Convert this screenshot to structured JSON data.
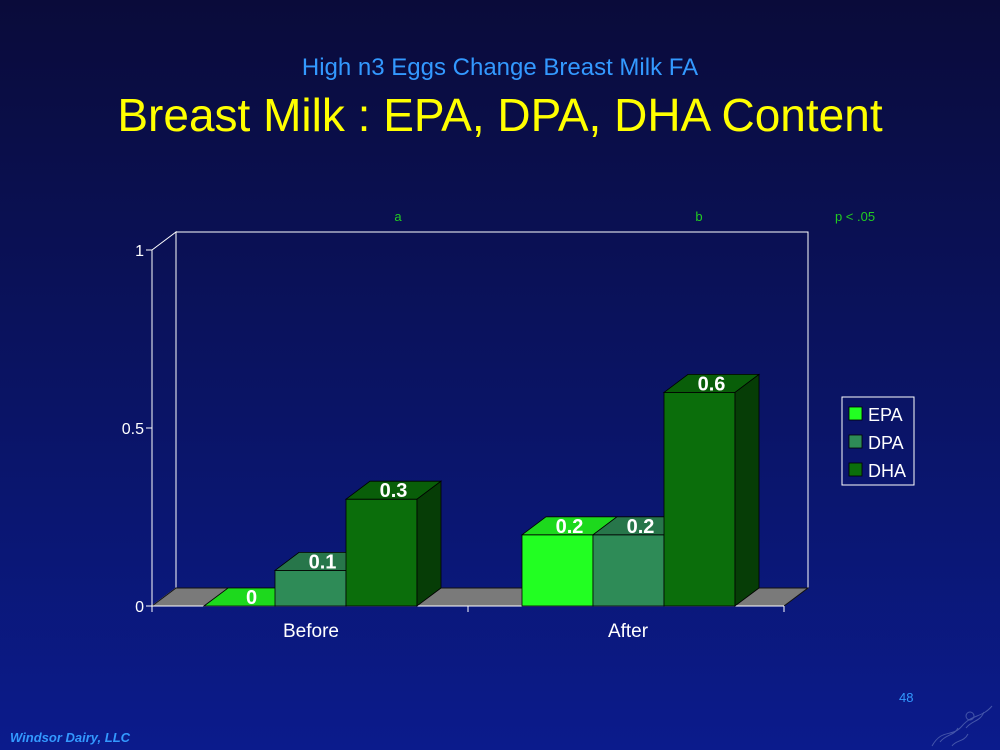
{
  "slide": {
    "subtitle": "High n3 Eggs Change Breast Milk FA",
    "title": "Breast Milk : EPA, DPA, DHA Content",
    "footer": "Windsor Dairy, LLC",
    "page_number": "48"
  },
  "chart_data": {
    "type": "bar",
    "categories": [
      "Before",
      "After"
    ],
    "series": [
      {
        "name": "EPA",
        "values": [
          0,
          0.2
        ],
        "color": "#22ff22"
      },
      {
        "name": "DPA",
        "values": [
          0.1,
          0.2
        ],
        "color": "#2e8b57"
      },
      {
        "name": "DHA",
        "values": [
          0.3,
          0.6
        ],
        "color": "#0b6e0b"
      }
    ],
    "data_labels": [
      [
        "0",
        "0.1",
        "0.3"
      ],
      [
        "0.2",
        "0.2",
        "0.6"
      ]
    ],
    "ylim": [
      0,
      1
    ],
    "yticks": [
      "0",
      "0.5",
      "1"
    ],
    "annotations": [
      "a",
      "b",
      "p < .05"
    ],
    "legend_position": "right",
    "grid": false,
    "style": "3d-clustered-column"
  }
}
